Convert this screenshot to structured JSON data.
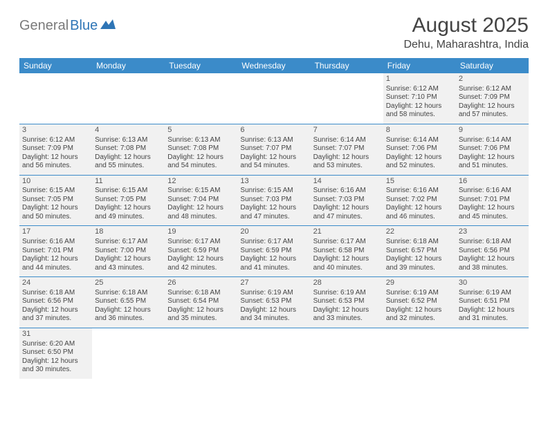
{
  "logo": {
    "gray": "General",
    "blue": "Blue"
  },
  "title": "August 2025",
  "location": "Dehu, Maharashtra, India",
  "header_bg": "#3b8bc9",
  "header_fg": "#ffffff",
  "cell_filled_bg": "#f1f1f1",
  "cell_border": "#3b8bc9",
  "dayNames": [
    "Sunday",
    "Monday",
    "Tuesday",
    "Wednesday",
    "Thursday",
    "Friday",
    "Saturday"
  ],
  "weeks": [
    [
      null,
      null,
      null,
      null,
      null,
      {
        "n": "1",
        "sr": "Sunrise: 6:12 AM",
        "ss": "Sunset: 7:10 PM",
        "d1": "Daylight: 12 hours",
        "d2": "and 58 minutes."
      },
      {
        "n": "2",
        "sr": "Sunrise: 6:12 AM",
        "ss": "Sunset: 7:09 PM",
        "d1": "Daylight: 12 hours",
        "d2": "and 57 minutes."
      }
    ],
    [
      {
        "n": "3",
        "sr": "Sunrise: 6:12 AM",
        "ss": "Sunset: 7:09 PM",
        "d1": "Daylight: 12 hours",
        "d2": "and 56 minutes."
      },
      {
        "n": "4",
        "sr": "Sunrise: 6:13 AM",
        "ss": "Sunset: 7:08 PM",
        "d1": "Daylight: 12 hours",
        "d2": "and 55 minutes."
      },
      {
        "n": "5",
        "sr": "Sunrise: 6:13 AM",
        "ss": "Sunset: 7:08 PM",
        "d1": "Daylight: 12 hours",
        "d2": "and 54 minutes."
      },
      {
        "n": "6",
        "sr": "Sunrise: 6:13 AM",
        "ss": "Sunset: 7:07 PM",
        "d1": "Daylight: 12 hours",
        "d2": "and 54 minutes."
      },
      {
        "n": "7",
        "sr": "Sunrise: 6:14 AM",
        "ss": "Sunset: 7:07 PM",
        "d1": "Daylight: 12 hours",
        "d2": "and 53 minutes."
      },
      {
        "n": "8",
        "sr": "Sunrise: 6:14 AM",
        "ss": "Sunset: 7:06 PM",
        "d1": "Daylight: 12 hours",
        "d2": "and 52 minutes."
      },
      {
        "n": "9",
        "sr": "Sunrise: 6:14 AM",
        "ss": "Sunset: 7:06 PM",
        "d1": "Daylight: 12 hours",
        "d2": "and 51 minutes."
      }
    ],
    [
      {
        "n": "10",
        "sr": "Sunrise: 6:15 AM",
        "ss": "Sunset: 7:05 PM",
        "d1": "Daylight: 12 hours",
        "d2": "and 50 minutes."
      },
      {
        "n": "11",
        "sr": "Sunrise: 6:15 AM",
        "ss": "Sunset: 7:05 PM",
        "d1": "Daylight: 12 hours",
        "d2": "and 49 minutes."
      },
      {
        "n": "12",
        "sr": "Sunrise: 6:15 AM",
        "ss": "Sunset: 7:04 PM",
        "d1": "Daylight: 12 hours",
        "d2": "and 48 minutes."
      },
      {
        "n": "13",
        "sr": "Sunrise: 6:15 AM",
        "ss": "Sunset: 7:03 PM",
        "d1": "Daylight: 12 hours",
        "d2": "and 47 minutes."
      },
      {
        "n": "14",
        "sr": "Sunrise: 6:16 AM",
        "ss": "Sunset: 7:03 PM",
        "d1": "Daylight: 12 hours",
        "d2": "and 47 minutes."
      },
      {
        "n": "15",
        "sr": "Sunrise: 6:16 AM",
        "ss": "Sunset: 7:02 PM",
        "d1": "Daylight: 12 hours",
        "d2": "and 46 minutes."
      },
      {
        "n": "16",
        "sr": "Sunrise: 6:16 AM",
        "ss": "Sunset: 7:01 PM",
        "d1": "Daylight: 12 hours",
        "d2": "and 45 minutes."
      }
    ],
    [
      {
        "n": "17",
        "sr": "Sunrise: 6:16 AM",
        "ss": "Sunset: 7:01 PM",
        "d1": "Daylight: 12 hours",
        "d2": "and 44 minutes."
      },
      {
        "n": "18",
        "sr": "Sunrise: 6:17 AM",
        "ss": "Sunset: 7:00 PM",
        "d1": "Daylight: 12 hours",
        "d2": "and 43 minutes."
      },
      {
        "n": "19",
        "sr": "Sunrise: 6:17 AM",
        "ss": "Sunset: 6:59 PM",
        "d1": "Daylight: 12 hours",
        "d2": "and 42 minutes."
      },
      {
        "n": "20",
        "sr": "Sunrise: 6:17 AM",
        "ss": "Sunset: 6:59 PM",
        "d1": "Daylight: 12 hours",
        "d2": "and 41 minutes."
      },
      {
        "n": "21",
        "sr": "Sunrise: 6:17 AM",
        "ss": "Sunset: 6:58 PM",
        "d1": "Daylight: 12 hours",
        "d2": "and 40 minutes."
      },
      {
        "n": "22",
        "sr": "Sunrise: 6:18 AM",
        "ss": "Sunset: 6:57 PM",
        "d1": "Daylight: 12 hours",
        "d2": "and 39 minutes."
      },
      {
        "n": "23",
        "sr": "Sunrise: 6:18 AM",
        "ss": "Sunset: 6:56 PM",
        "d1": "Daylight: 12 hours",
        "d2": "and 38 minutes."
      }
    ],
    [
      {
        "n": "24",
        "sr": "Sunrise: 6:18 AM",
        "ss": "Sunset: 6:56 PM",
        "d1": "Daylight: 12 hours",
        "d2": "and 37 minutes."
      },
      {
        "n": "25",
        "sr": "Sunrise: 6:18 AM",
        "ss": "Sunset: 6:55 PM",
        "d1": "Daylight: 12 hours",
        "d2": "and 36 minutes."
      },
      {
        "n": "26",
        "sr": "Sunrise: 6:18 AM",
        "ss": "Sunset: 6:54 PM",
        "d1": "Daylight: 12 hours",
        "d2": "and 35 minutes."
      },
      {
        "n": "27",
        "sr": "Sunrise: 6:19 AM",
        "ss": "Sunset: 6:53 PM",
        "d1": "Daylight: 12 hours",
        "d2": "and 34 minutes."
      },
      {
        "n": "28",
        "sr": "Sunrise: 6:19 AM",
        "ss": "Sunset: 6:53 PM",
        "d1": "Daylight: 12 hours",
        "d2": "and 33 minutes."
      },
      {
        "n": "29",
        "sr": "Sunrise: 6:19 AM",
        "ss": "Sunset: 6:52 PM",
        "d1": "Daylight: 12 hours",
        "d2": "and 32 minutes."
      },
      {
        "n": "30",
        "sr": "Sunrise: 6:19 AM",
        "ss": "Sunset: 6:51 PM",
        "d1": "Daylight: 12 hours",
        "d2": "and 31 minutes."
      }
    ],
    [
      {
        "n": "31",
        "sr": "Sunrise: 6:20 AM",
        "ss": "Sunset: 6:50 PM",
        "d1": "Daylight: 12 hours",
        "d2": "and 30 minutes."
      },
      null,
      null,
      null,
      null,
      null,
      null
    ]
  ]
}
